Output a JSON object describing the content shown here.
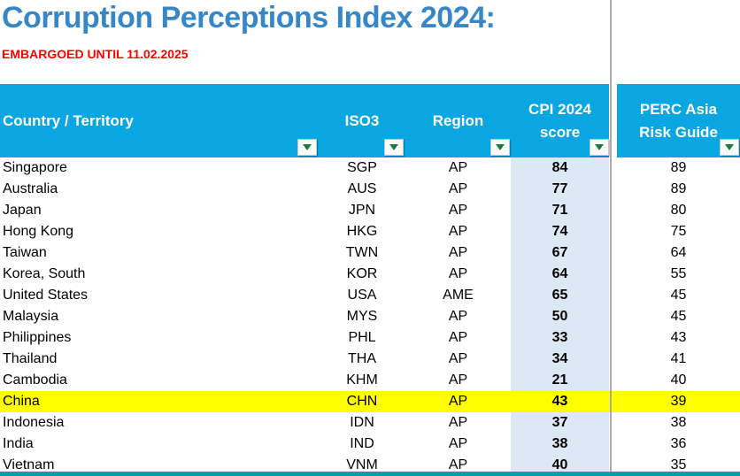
{
  "title": "Corruption Perceptions Index 2024:",
  "embargo_notice": "EMBARGOED UNTIL 11.02.2025",
  "colors": {
    "title_text": "#3787c8",
    "embargo_text": "#ff0000",
    "header_bg": "#0aa6e1",
    "header_text": "#ffffff",
    "cpi_column_bg": "#dce9f5",
    "highlight_row_bg": "#ffff00",
    "filter_arrow_green": "#1e7b3c",
    "pane_divider_gray": "#ababab",
    "bottom_bar_teal": "#00a0ae"
  },
  "table": {
    "columns": [
      {
        "id": "country",
        "label": "Country / Territory"
      },
      {
        "id": "iso3",
        "label": "ISO3"
      },
      {
        "id": "region",
        "label": "Region"
      },
      {
        "id": "cpi_2024_score",
        "label": "CPI 2024 score"
      },
      {
        "id": "perc_asia_risk_guide",
        "label": "PERC Asia Risk Guide"
      }
    ],
    "highlighted_country": "China",
    "rows": [
      {
        "country": "Singapore",
        "iso3": "SGP",
        "region": "AP",
        "cpi_2024_score": 84,
        "perc_asia_risk_guide": 89,
        "highlighted": false
      },
      {
        "country": "Australia",
        "iso3": "AUS",
        "region": "AP",
        "cpi_2024_score": 77,
        "perc_asia_risk_guide": 89,
        "highlighted": false
      },
      {
        "country": "Japan",
        "iso3": "JPN",
        "region": "AP",
        "cpi_2024_score": 71,
        "perc_asia_risk_guide": 80,
        "highlighted": false
      },
      {
        "country": "Hong Kong",
        "iso3": "HKG",
        "region": "AP",
        "cpi_2024_score": 74,
        "perc_asia_risk_guide": 75,
        "highlighted": false
      },
      {
        "country": "Taiwan",
        "iso3": "TWN",
        "region": "AP",
        "cpi_2024_score": 67,
        "perc_asia_risk_guide": 64,
        "highlighted": false
      },
      {
        "country": "Korea, South",
        "iso3": "KOR",
        "region": "AP",
        "cpi_2024_score": 64,
        "perc_asia_risk_guide": 55,
        "highlighted": false
      },
      {
        "country": "United States",
        "iso3": "USA",
        "region": "AME",
        "cpi_2024_score": 65,
        "perc_asia_risk_guide": 45,
        "highlighted": false
      },
      {
        "country": "Malaysia",
        "iso3": "MYS",
        "region": "AP",
        "cpi_2024_score": 50,
        "perc_asia_risk_guide": 45,
        "highlighted": false
      },
      {
        "country": "Philippines",
        "iso3": "PHL",
        "region": "AP",
        "cpi_2024_score": 33,
        "perc_asia_risk_guide": 43,
        "highlighted": false
      },
      {
        "country": "Thailand",
        "iso3": "THA",
        "region": "AP",
        "cpi_2024_score": 34,
        "perc_asia_risk_guide": 41,
        "highlighted": false
      },
      {
        "country": "Cambodia",
        "iso3": "KHM",
        "region": "AP",
        "cpi_2024_score": 21,
        "perc_asia_risk_guide": 40,
        "highlighted": false
      },
      {
        "country": "China",
        "iso3": "CHN",
        "region": "AP",
        "cpi_2024_score": 43,
        "perc_asia_risk_guide": 39,
        "highlighted": true
      },
      {
        "country": "Indonesia",
        "iso3": "IDN",
        "region": "AP",
        "cpi_2024_score": 37,
        "perc_asia_risk_guide": 38,
        "highlighted": false
      },
      {
        "country": "India",
        "iso3": "IND",
        "region": "AP",
        "cpi_2024_score": 38,
        "perc_asia_risk_guide": 36,
        "highlighted": false
      },
      {
        "country": "Vietnam",
        "iso3": "VNM",
        "region": "AP",
        "cpi_2024_score": 40,
        "perc_asia_risk_guide": 35,
        "highlighted": false
      }
    ]
  }
}
